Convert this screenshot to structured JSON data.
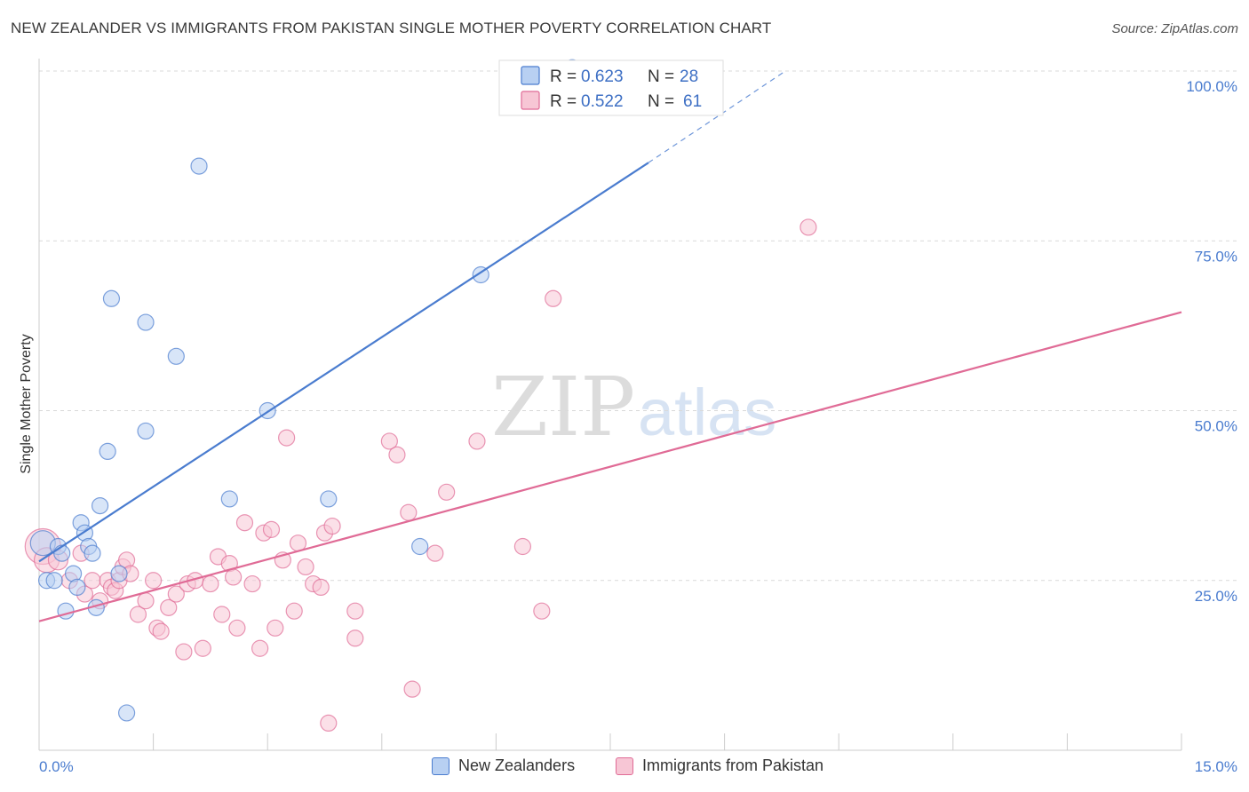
{
  "header": {
    "title": "NEW ZEALANDER VS IMMIGRANTS FROM PAKISTAN SINGLE MOTHER POVERTY CORRELATION CHART",
    "source": "Source: ZipAtlas.com"
  },
  "watermark": {
    "zip": "ZIP",
    "atlas": "atlas"
  },
  "chart_data": {
    "type": "scatter",
    "title": "NEW ZEALANDER VS IMMIGRANTS FROM PAKISTAN SINGLE MOTHER POVERTY CORRELATION CHART",
    "xlabel": "",
    "ylabel": "Single Mother Poverty",
    "xlim": [
      0,
      15
    ],
    "ylim": [
      0,
      100
    ],
    "x_ticks": [
      0,
      1.5,
      3,
      4.5,
      6,
      7.5,
      9,
      10.5,
      12,
      13.5,
      15
    ],
    "x_tick_labels": {
      "start": "0.0%",
      "end": "15.0%"
    },
    "y_ticks": [
      25,
      50,
      75,
      100
    ],
    "y_tick_labels": [
      "25.0%",
      "50.0%",
      "75.0%",
      "100.0%"
    ],
    "grid": true,
    "legend_position": "top-center",
    "series": [
      {
        "name": "New Zealanders",
        "color": "#4a7ccf",
        "fill": "#b8d0f2",
        "stats": {
          "r_label": "R = ",
          "r": "0.623",
          "n_label": "N = ",
          "n": "28"
        },
        "trend": {
          "x0": 0,
          "y0": 27.8,
          "x1": 8.0,
          "y1": 86.5,
          "dash_to_x": 9.8,
          "dash_to_y": 100
        },
        "points": [
          [
            0.05,
            30.5,
            14
          ],
          [
            0.1,
            25,
            9
          ],
          [
            0.2,
            25,
            9
          ],
          [
            0.25,
            30,
            9
          ],
          [
            0.3,
            29,
            9
          ],
          [
            0.35,
            20.5,
            9
          ],
          [
            0.45,
            26,
            9
          ],
          [
            0.5,
            24,
            9
          ],
          [
            0.55,
            33.5,
            9
          ],
          [
            0.6,
            32,
            9
          ],
          [
            0.65,
            30,
            9
          ],
          [
            0.7,
            29,
            9
          ],
          [
            0.75,
            21,
            9
          ],
          [
            0.8,
            36,
            9
          ],
          [
            0.9,
            44,
            9
          ],
          [
            0.95,
            66.5,
            9
          ],
          [
            1.05,
            26,
            9
          ],
          [
            1.15,
            5.5,
            9
          ],
          [
            1.4,
            63,
            9
          ],
          [
            1.4,
            47,
            9
          ],
          [
            1.8,
            58,
            9
          ],
          [
            2.1,
            86,
            9
          ],
          [
            2.5,
            37,
            9
          ],
          [
            3.0,
            50,
            9
          ],
          [
            3.8,
            37,
            9
          ],
          [
            5.0,
            30,
            9
          ],
          [
            5.8,
            70,
            9
          ],
          [
            7.0,
            100.5,
            9
          ]
        ]
      },
      {
        "name": "Immigrants from Pakistan",
        "color": "#e06b96",
        "fill": "#f7c6d5",
        "stats": {
          "r_label": "R = ",
          "r": "0.522",
          "n_label": "N = ",
          "n": "61"
        },
        "trend": {
          "x0": 0,
          "y0": 19,
          "x1": 15,
          "y1": 64.5
        },
        "points": [
          [
            0.05,
            30,
            20
          ],
          [
            0.1,
            28,
            14
          ],
          [
            0.25,
            28,
            11
          ],
          [
            0.4,
            25,
            9
          ],
          [
            0.55,
            29,
            9
          ],
          [
            0.6,
            23,
            9
          ],
          [
            0.7,
            25,
            9
          ],
          [
            0.8,
            22,
            9
          ],
          [
            0.9,
            25,
            9
          ],
          [
            0.95,
            24,
            9
          ],
          [
            1.0,
            23.5,
            9
          ],
          [
            1.05,
            25,
            9
          ],
          [
            1.1,
            27,
            9
          ],
          [
            1.15,
            28,
            9
          ],
          [
            1.2,
            26,
            9
          ],
          [
            1.3,
            20,
            9
          ],
          [
            1.4,
            22,
            9
          ],
          [
            1.5,
            25,
            9
          ],
          [
            1.55,
            18,
            9
          ],
          [
            1.6,
            17.5,
            9
          ],
          [
            1.7,
            21,
            9
          ],
          [
            1.8,
            23,
            9
          ],
          [
            1.9,
            14.5,
            9
          ],
          [
            1.95,
            24.5,
            9
          ],
          [
            2.05,
            25,
            9
          ],
          [
            2.15,
            15,
            9
          ],
          [
            2.25,
            24.5,
            9
          ],
          [
            2.35,
            28.5,
            9
          ],
          [
            2.4,
            20,
            9
          ],
          [
            2.5,
            27.5,
            9
          ],
          [
            2.55,
            25.5,
            9
          ],
          [
            2.6,
            18,
            9
          ],
          [
            2.7,
            33.5,
            9
          ],
          [
            2.8,
            24.5,
            9
          ],
          [
            2.9,
            15,
            9
          ],
          [
            2.95,
            32,
            9
          ],
          [
            3.05,
            32.5,
            9
          ],
          [
            3.1,
            18,
            9
          ],
          [
            3.2,
            28,
            9
          ],
          [
            3.25,
            46,
            9
          ],
          [
            3.35,
            20.5,
            9
          ],
          [
            3.4,
            30.5,
            9
          ],
          [
            3.5,
            27,
            9
          ],
          [
            3.6,
            24.5,
            9
          ],
          [
            3.7,
            24,
            9
          ],
          [
            3.75,
            32,
            9
          ],
          [
            3.8,
            4,
            9
          ],
          [
            3.85,
            33,
            9
          ],
          [
            4.15,
            20.5,
            9
          ],
          [
            4.15,
            16.5,
            9
          ],
          [
            4.6,
            45.5,
            9
          ],
          [
            4.7,
            43.5,
            9
          ],
          [
            4.85,
            35,
            9
          ],
          [
            4.9,
            9,
            9
          ],
          [
            5.2,
            29,
            9
          ],
          [
            5.35,
            38,
            9
          ],
          [
            5.75,
            45.5,
            9
          ],
          [
            6.35,
            30,
            9
          ],
          [
            6.6,
            20.5,
            9
          ],
          [
            6.75,
            66.5,
            9
          ],
          [
            10.1,
            77,
            9
          ]
        ]
      }
    ]
  }
}
